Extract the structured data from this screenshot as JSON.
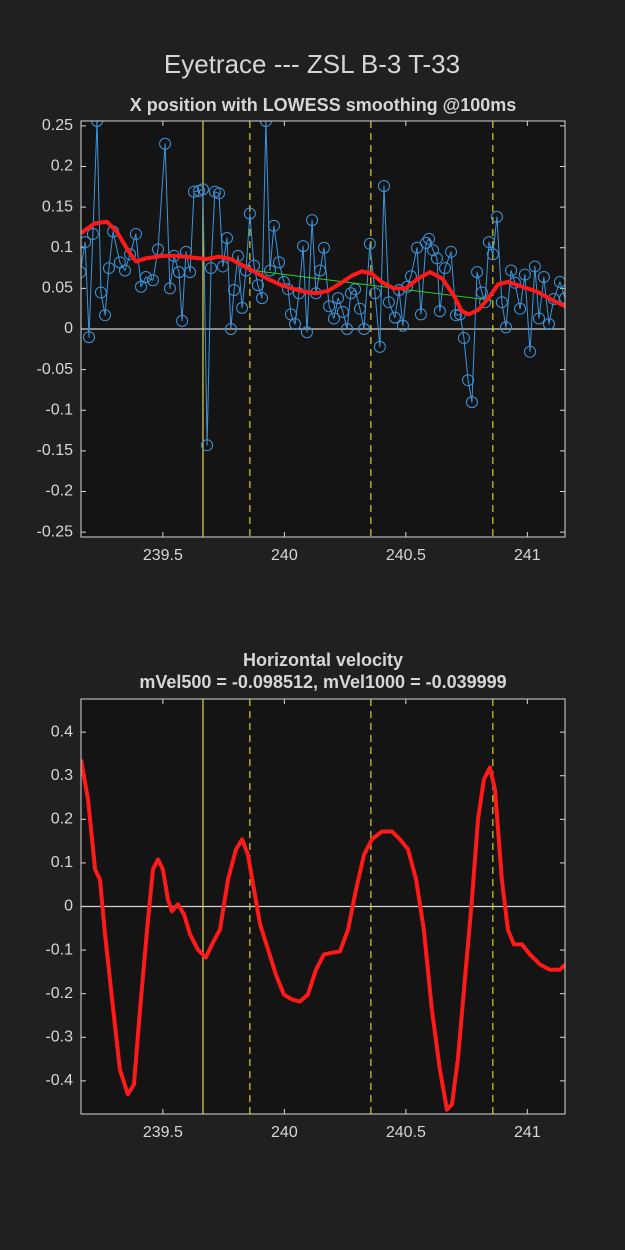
{
  "figure_title": "Eyetrace --- ZSL B-3 T-33",
  "chart_data": [
    {
      "type": "line",
      "title": "X position with LOWESS smoothing @100ms",
      "xlim": [
        239.163,
        241.155
      ],
      "xticks": [
        239.5,
        240,
        240.5,
        241
      ],
      "ylim": [
        -0.256,
        0.256
      ],
      "yticks": [
        -0.25,
        -0.2,
        -0.15,
        -0.1,
        -0.05,
        0,
        0.05,
        0.1,
        0.15,
        0.2,
        0.25
      ],
      "hlines": [
        {
          "y": 0,
          "color": "#d0d0d0",
          "style": "solid"
        }
      ],
      "vlines": [
        {
          "x": 239.665,
          "color": "#e0d64a",
          "style": "solid"
        },
        {
          "x": 239.858,
          "color": "#d8cc3a",
          "style": "dashed"
        },
        {
          "x": 240.356,
          "color": "#d8cc3a",
          "style": "dashed"
        },
        {
          "x": 240.858,
          "color": "#d8cc3a",
          "style": "dashed"
        }
      ],
      "series": [
        {
          "color": "#3d95dc",
          "linewidth": 1,
          "marker": "o",
          "x": [
            239.16,
            239.18,
            239.196,
            239.212,
            239.229,
            239.245,
            239.262,
            239.278,
            239.295,
            239.323,
            239.344,
            239.365,
            239.389,
            239.41,
            239.43,
            239.459,
            239.48,
            239.509,
            239.529,
            239.546,
            239.566,
            239.579,
            239.595,
            239.612,
            239.628,
            239.649,
            239.665,
            239.682,
            239.698,
            239.714,
            239.731,
            239.747,
            239.764,
            239.78,
            239.793,
            239.809,
            239.826,
            239.842,
            239.858,
            239.875,
            239.891,
            239.908,
            239.924,
            239.941,
            239.957,
            239.978,
            239.998,
            240.015,
            240.027,
            240.044,
            240.06,
            240.077,
            240.093,
            240.114,
            240.13,
            240.147,
            240.163,
            240.184,
            240.204,
            240.221,
            240.241,
            240.258,
            240.274,
            240.291,
            240.311,
            240.328,
            240.352,
            240.373,
            240.393,
            240.41,
            240.43,
            240.455,
            240.472,
            240.488,
            240.505,
            240.521,
            240.546,
            240.562,
            240.583,
            240.595,
            240.612,
            240.628,
            240.64,
            240.661,
            240.686,
            240.706,
            240.723,
            240.739,
            240.756,
            240.772,
            240.793,
            240.813,
            240.826,
            240.842,
            240.858,
            240.875,
            240.895,
            240.912,
            240.933,
            240.949,
            240.97,
            240.99,
            241.011,
            241.031,
            241.048,
            241.068,
            241.089,
            241.109,
            241.134,
            241.155
          ],
          "values": [
            0.07,
            0.107,
            -0.01,
            0.117,
            0.256,
            0.045,
            0.017,
            0.075,
            0.12,
            0.082,
            0.072,
            0.092,
            0.117,
            0.052,
            0.064,
            0.06,
            0.098,
            0.228,
            0.05,
            0.09,
            0.07,
            0.01,
            0.095,
            0.07,
            0.169,
            0.17,
            0.172,
            -0.143,
            0.075,
            0.169,
            0.167,
            0.077,
            0.112,
            0,
            0.048,
            0.09,
            0.026,
            0.072,
            0.142,
            0.078,
            0.054,
            0.038,
            0.256,
            0.072,
            0.127,
            0.082,
            0.058,
            0.049,
            0.018,
            0.006,
            0.044,
            0.102,
            -0.004,
            0.134,
            0.044,
            0.072,
            0.1,
            0.028,
            0.013,
            0.038,
            0.021,
            0,
            0.044,
            0.049,
            0.025,
            0,
            0.105,
            0.044,
            -0.022,
            0.176,
            0.033,
            0.014,
            0.048,
            0.004,
            0.052,
            0.065,
            0.1,
            0.018,
            0.106,
            0.111,
            0.097,
            0.087,
            0.022,
            0.075,
            0.095,
            0.017,
            0.018,
            -0.011,
            -0.063,
            -0.09,
            0.07,
            0.045,
            0.033,
            0.107,
            0.092,
            0.138,
            0.033,
            0.002,
            0.072,
            0.057,
            0.025,
            0.067,
            -0.028,
            0.077,
            0.013,
            0.064,
            0.006,
            0.037,
            0.058,
            0.038
          ]
        },
        {
          "color": "#2fd02f",
          "linewidth": 1,
          "x": [
            239.87,
            240.86
          ],
          "values": [
            0.072,
            0.035
          ]
        },
        {
          "color": "#ff1a1a",
          "linewidth": 4,
          "x": [
            239.163,
            239.22,
            239.27,
            239.31,
            239.36,
            239.39,
            239.43,
            239.5,
            239.56,
            239.62,
            239.68,
            239.73,
            239.78,
            239.83,
            239.88,
            239.93,
            239.98,
            240.03,
            240.08,
            240.13,
            240.18,
            240.23,
            240.28,
            240.32,
            240.36,
            240.4,
            240.45,
            240.5,
            240.55,
            240.6,
            240.65,
            240.7,
            240.73,
            240.76,
            240.8,
            240.84,
            240.88,
            240.92,
            240.98,
            241.04,
            241.1,
            241.155
          ],
          "values": [
            0.118,
            0.13,
            0.132,
            0.12,
            0.095,
            0.083,
            0.087,
            0.09,
            0.09,
            0.088,
            0.086,
            0.089,
            0.086,
            0.078,
            0.07,
            0.062,
            0.055,
            0.05,
            0.046,
            0.044,
            0.047,
            0.056,
            0.066,
            0.071,
            0.068,
            0.058,
            0.05,
            0.05,
            0.062,
            0.07,
            0.062,
            0.04,
            0.022,
            0.018,
            0.024,
            0.038,
            0.055,
            0.058,
            0.052,
            0.046,
            0.036,
            0.028
          ]
        }
      ]
    },
    {
      "type": "line",
      "title": "Horizontal velocity",
      "subtitle": "mVel500 = -0.098512, mVel1000 = -0.039999",
      "xlim": [
        239.163,
        241.155
      ],
      "xticks": [
        239.5,
        240,
        240.5,
        241
      ],
      "ylim": [
        -0.476,
        0.476
      ],
      "yticks": [
        -0.4,
        -0.3,
        -0.2,
        -0.1,
        0,
        0.1,
        0.2,
        0.3,
        0.4
      ],
      "hlines": [
        {
          "y": 0,
          "color": "#d0d0d0",
          "style": "solid"
        }
      ],
      "vlines": [
        {
          "x": 239.665,
          "color": "#e0d64a",
          "style": "solid"
        },
        {
          "x": 239.858,
          "color": "#d8cc3a",
          "style": "dashed"
        },
        {
          "x": 240.356,
          "color": "#d8cc3a",
          "style": "dashed"
        },
        {
          "x": 240.858,
          "color": "#d8cc3a",
          "style": "dashed"
        }
      ],
      "series": [
        {
          "color": "#ff1a1a",
          "linewidth": 4,
          "x": [
            239.163,
            239.192,
            239.221,
            239.241,
            239.262,
            239.291,
            239.323,
            239.356,
            239.381,
            239.406,
            239.435,
            239.459,
            239.48,
            239.5,
            239.521,
            239.537,
            239.562,
            239.587,
            239.612,
            239.644,
            239.677,
            239.702,
            239.735,
            239.768,
            239.801,
            239.826,
            239.85,
            239.875,
            239.9,
            239.933,
            239.965,
            239.998,
            240.031,
            240.064,
            240.097,
            240.13,
            240.163,
            240.196,
            240.229,
            240.262,
            240.295,
            240.328,
            240.36,
            240.401,
            240.443,
            240.476,
            240.509,
            240.542,
            240.574,
            240.607,
            240.64,
            240.669,
            240.69,
            240.714,
            240.743,
            240.772,
            240.797,
            240.821,
            240.846,
            240.867,
            240.895,
            240.92,
            240.945,
            240.978,
            241.011,
            241.052,
            241.093,
            241.134,
            241.155
          ],
          "values": [
            0.337,
            0.245,
            0.085,
            0.062,
            -0.064,
            -0.213,
            -0.374,
            -0.431,
            -0.408,
            -0.236,
            -0.053,
            0.085,
            0.108,
            0.085,
            0.016,
            -0.011,
            0.005,
            -0.018,
            -0.064,
            -0.099,
            -0.117,
            -0.087,
            -0.053,
            0.062,
            0.131,
            0.154,
            0.119,
            0.039,
            -0.041,
            -0.099,
            -0.156,
            -0.202,
            -0.213,
            -0.218,
            -0.202,
            -0.145,
            -0.11,
            -0.106,
            -0.103,
            -0.053,
            0.039,
            0.119,
            0.154,
            0.172,
            0.172,
            0.154,
            0.131,
            0.062,
            -0.053,
            -0.236,
            -0.374,
            -0.466,
            -0.454,
            -0.351,
            -0.167,
            0.016,
            0.2,
            0.291,
            0.319,
            0.268,
            0.062,
            -0.053,
            -0.087,
            -0.087,
            -0.11,
            -0.133,
            -0.145,
            -0.145,
            -0.133
          ]
        }
      ]
    }
  ]
}
